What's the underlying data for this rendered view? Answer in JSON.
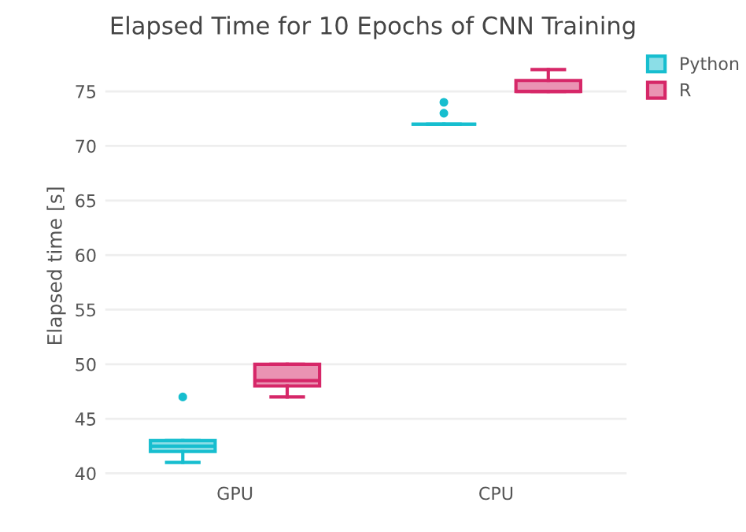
{
  "chart_data": {
    "type": "box",
    "title": "Elapsed Time for 10 Epochs of CNN Training",
    "ylabel": "Elapsed time [s]",
    "categories": [
      "GPU",
      "CPU"
    ],
    "ylim": [
      39.5,
      78.5
    ],
    "yticks": [
      40,
      45,
      50,
      55,
      60,
      65,
      70,
      75
    ],
    "grid": "y",
    "legend": "top right",
    "series": [
      {
        "name": "Python",
        "color": "#17becf",
        "boxes": [
          {
            "low": 41,
            "q1": 42,
            "median": 42.5,
            "q3": 43,
            "high": 43,
            "outliers": [
              47
            ]
          },
          {
            "low": 72,
            "q1": 72,
            "median": 72,
            "q3": 72,
            "high": 72,
            "outliers": [
              73,
              74
            ]
          }
        ]
      },
      {
        "name": "R",
        "color": "#d62768",
        "boxes": [
          {
            "low": 47,
            "q1": 48,
            "median": 48.5,
            "q3": 50,
            "high": 50
          },
          {
            "low": 75,
            "q1": 75,
            "median": 75,
            "q3": 76,
            "high": 77
          }
        ]
      }
    ]
  }
}
